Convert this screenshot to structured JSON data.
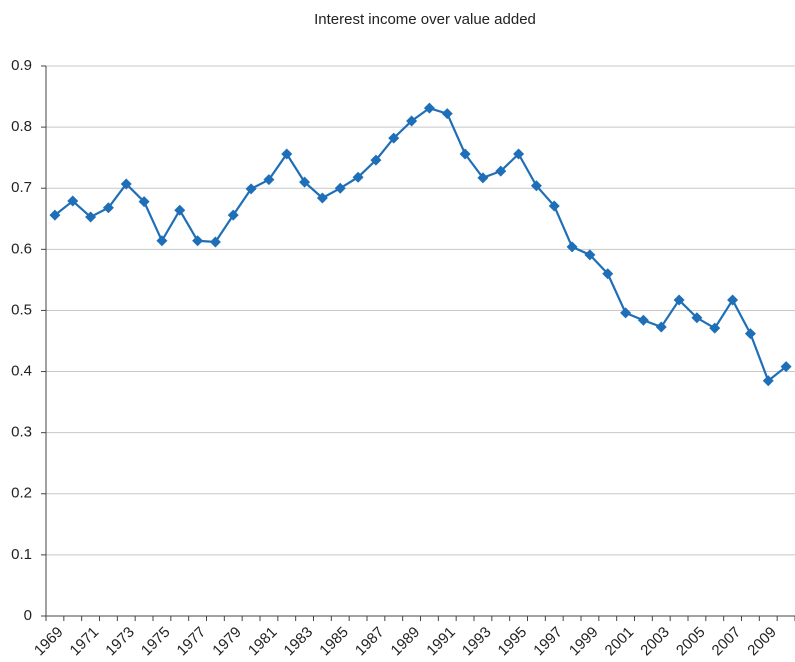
{
  "chart_data": {
    "type": "line",
    "title": "Interest income over value added",
    "categories": [
      "1969",
      null,
      "1971",
      null,
      "1973",
      null,
      "1975",
      null,
      "1977",
      null,
      "1979",
      null,
      "1981",
      null,
      "1983",
      null,
      "1985",
      null,
      "1987",
      null,
      "1989",
      null,
      "1991",
      null,
      "1993",
      null,
      "1995",
      null,
      "1997",
      null,
      "1999",
      null,
      "2001",
      null,
      "2003",
      null,
      "2005",
      null,
      "2007",
      null,
      "2009",
      null
    ],
    "series": [
      {
        "name": "Interest income over value added",
        "color": "#1f6fb8",
        "values": [
          0.656,
          0.679,
          0.653,
          0.668,
          0.707,
          0.678,
          0.614,
          0.664,
          0.614,
          0.612,
          0.656,
          0.699,
          0.714,
          0.756,
          0.71,
          0.684,
          0.7,
          0.718,
          0.746,
          0.782,
          0.81,
          0.831,
          0.822,
          0.756,
          0.717,
          0.728,
          0.756,
          0.704,
          0.671,
          0.604,
          0.591,
          0.56,
          0.496,
          0.484,
          0.473,
          0.517,
          0.488,
          0.471,
          0.517,
          0.462,
          0.385,
          0.408
        ]
      }
    ],
    "ylim": [
      0,
      0.9
    ],
    "yticks": [
      0,
      0.1,
      0.2,
      0.3,
      0.4,
      0.5,
      0.6,
      0.7,
      0.8,
      0.9
    ],
    "grid": true
  }
}
